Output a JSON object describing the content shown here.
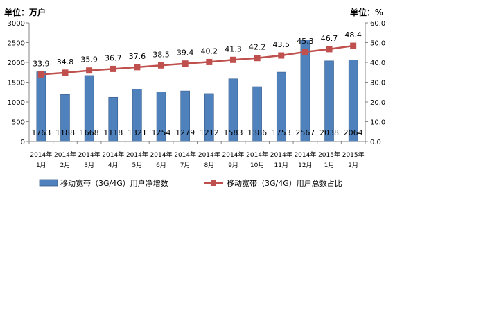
{
  "chart_data": {
    "type": "bar+line",
    "title": "",
    "left_unit_label": "单位：万户",
    "right_unit_label": "单位：%",
    "categories": [
      [
        "2014年",
        "1月"
      ],
      [
        "2014年",
        "2月"
      ],
      [
        "2014年",
        "3月"
      ],
      [
        "2014年",
        "4月"
      ],
      [
        "2014年",
        "5月"
      ],
      [
        "2014年",
        "6月"
      ],
      [
        "2014年",
        "7月"
      ],
      [
        "2014年",
        "8月"
      ],
      [
        "2014年",
        "9月"
      ],
      [
        "2014年",
        "10月"
      ],
      [
        "2014年",
        "11月"
      ],
      [
        "2014年",
        "12月"
      ],
      [
        "2015年",
        "1月"
      ],
      [
        "2015年",
        "2月"
      ]
    ],
    "y_left": {
      "min": 0,
      "max": 3000,
      "ticks": [
        0,
        500,
        1000,
        1500,
        2000,
        2500,
        3000
      ]
    },
    "y_right": {
      "min": 0,
      "max": 60,
      "ticks": [
        "0.0",
        "10.0",
        "20.0",
        "30.0",
        "40.0",
        "50.0",
        "60.0"
      ]
    },
    "series": [
      {
        "name": "移动宽带（3G/4G）用户净增数",
        "type": "bar",
        "axis": "left",
        "color": "#4F81BD",
        "values": [
          1763,
          1188,
          1668,
          1118,
          1321,
          1254,
          1279,
          1212,
          1583,
          1386,
          1753,
          2567,
          2038,
          2064
        ]
      },
      {
        "name": "移动宽带（3G/4G）用户总数占比",
        "type": "line",
        "axis": "right",
        "color": "#C0504D",
        "values": [
          33.9,
          34.8,
          35.9,
          36.7,
          37.6,
          38.5,
          39.4,
          40.2,
          41.3,
          42.2,
          43.5,
          45.3,
          46.7,
          48.4
        ]
      }
    ],
    "grid": false,
    "legend_position": "bottom"
  }
}
